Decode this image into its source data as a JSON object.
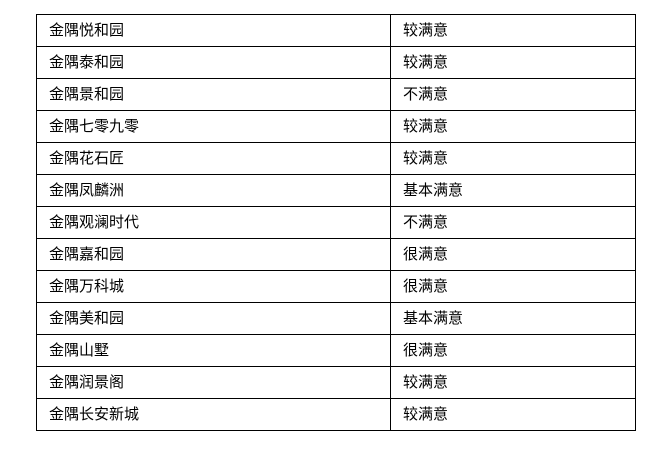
{
  "table": {
    "border_color": "#000000",
    "text_color": "#000000",
    "rows": [
      {
        "community": "金隅悦和园",
        "rating": "较满意"
      },
      {
        "community": "金隅泰和园",
        "rating": "较满意"
      },
      {
        "community": "金隅景和园",
        "rating": "不满意"
      },
      {
        "community": "金隅七零九零",
        "rating": "较满意"
      },
      {
        "community": "金隅花石匠",
        "rating": "较满意"
      },
      {
        "community": "金隅凤麟洲",
        "rating": "基本满意"
      },
      {
        "community": "金隅观澜时代",
        "rating": "不满意"
      },
      {
        "community": "金隅嘉和园",
        "rating": "很满意"
      },
      {
        "community": "金隅万科城",
        "rating": "很满意"
      },
      {
        "community": "金隅美和园",
        "rating": "基本满意"
      },
      {
        "community": "金隅山墅",
        "rating": "很满意"
      },
      {
        "community": "金隅润景阁",
        "rating": "较满意"
      },
      {
        "community": "金隅长安新城",
        "rating": "较满意"
      }
    ]
  }
}
